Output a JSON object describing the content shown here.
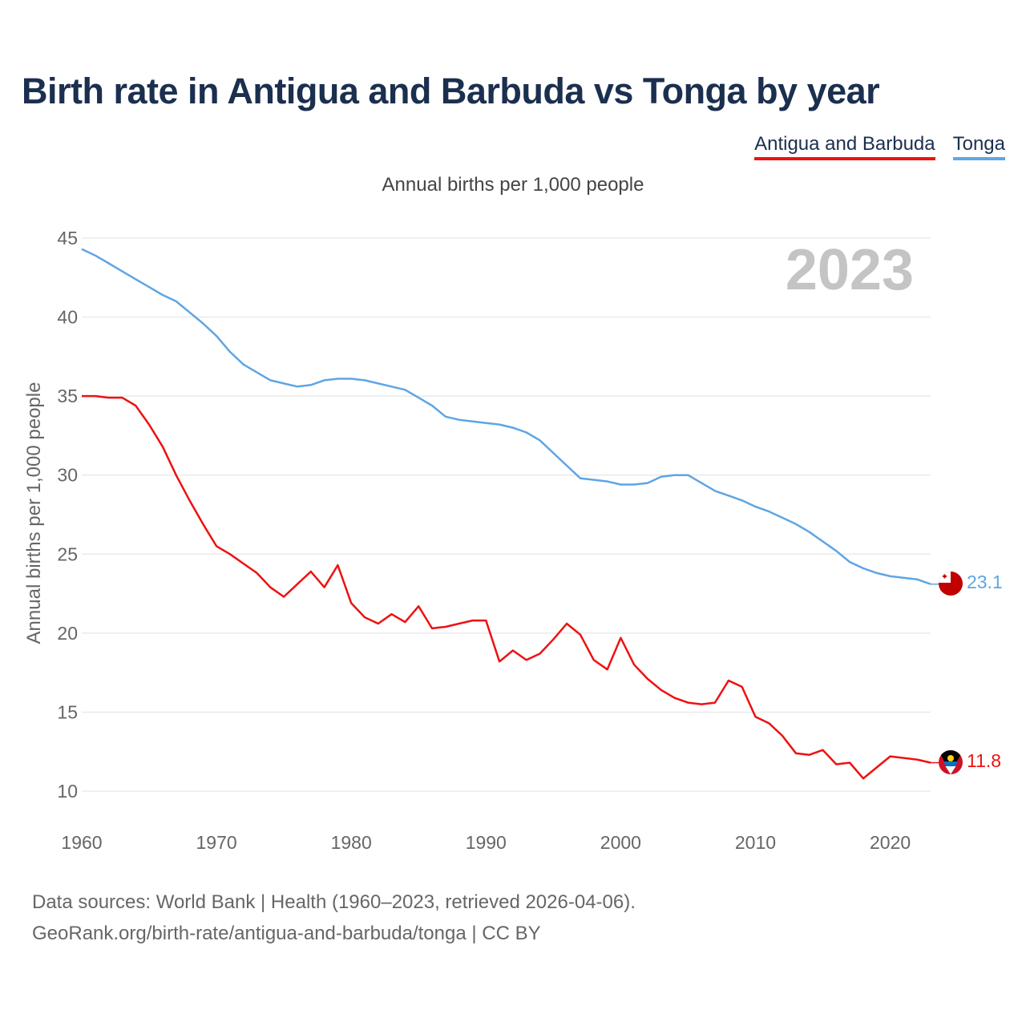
{
  "title": "Birth rate in Antigua and Barbuda vs Tonga by year",
  "subtitle": "Annual births per 1,000 people",
  "footer": {
    "line1": "Data sources: World Bank | Health (1960–2023, retrieved 2026-04-06).",
    "line2": "GeoRank.org/birth-rate/antigua-and-barbuda/tonga | CC BY"
  },
  "year_label": "2023",
  "chart_data": {
    "type": "line",
    "title": "Birth rate in Antigua and Barbuda vs Tonga by year",
    "subtitle": "Annual births per 1,000 people",
    "xlabel": "",
    "ylabel": "Annual births per 1,000 people",
    "xlim": [
      1960,
      2023
    ],
    "ylim": [
      10,
      45
    ],
    "xticks": [
      1960,
      1970,
      1980,
      1990,
      2000,
      2010,
      2020
    ],
    "yticks": [
      10,
      15,
      20,
      25,
      30,
      35,
      40,
      45
    ],
    "grid": true,
    "legend_position": "top-right",
    "x": [
      1960,
      1961,
      1962,
      1963,
      1964,
      1965,
      1966,
      1967,
      1968,
      1969,
      1970,
      1971,
      1972,
      1973,
      1974,
      1975,
      1976,
      1977,
      1978,
      1979,
      1980,
      1981,
      1982,
      1983,
      1984,
      1985,
      1986,
      1987,
      1988,
      1989,
      1990,
      1991,
      1992,
      1993,
      1994,
      1995,
      1996,
      1997,
      1998,
      1999,
      2000,
      2001,
      2002,
      2003,
      2004,
      2005,
      2006,
      2007,
      2008,
      2009,
      2010,
      2011,
      2012,
      2013,
      2014,
      2015,
      2016,
      2017,
      2018,
      2019,
      2020,
      2021,
      2022,
      2023
    ],
    "series": [
      {
        "name": "Antigua and Barbuda",
        "color": "#ee1111",
        "end_label": "11.8",
        "values": [
          35.0,
          35.0,
          34.9,
          34.9,
          34.4,
          33.2,
          31.8,
          30.0,
          28.4,
          26.9,
          25.5,
          25.0,
          24.4,
          23.8,
          22.9,
          22.3,
          23.1,
          23.9,
          22.9,
          24.3,
          21.9,
          21.0,
          20.6,
          21.2,
          20.7,
          21.7,
          20.3,
          20.4,
          20.6,
          20.8,
          20.8,
          18.2,
          18.9,
          18.3,
          18.7,
          19.6,
          20.6,
          19.9,
          18.3,
          17.7,
          19.7,
          18.0,
          17.1,
          16.4,
          15.9,
          15.6,
          15.5,
          15.6,
          17.0,
          16.6,
          14.7,
          14.3,
          13.5,
          12.4,
          12.3,
          12.6,
          11.7,
          11.8,
          10.8,
          11.5,
          12.2,
          12.1,
          12.0,
          11.8
        ]
      },
      {
        "name": "Tonga",
        "color": "#5fa5e4",
        "end_label": "23.1",
        "values": [
          44.3,
          43.9,
          43.4,
          42.9,
          42.4,
          41.9,
          41.4,
          41.0,
          40.3,
          39.6,
          38.8,
          37.8,
          37.0,
          36.5,
          36.0,
          35.8,
          35.6,
          35.7,
          36.0,
          36.1,
          36.1,
          36.0,
          35.8,
          35.6,
          35.4,
          34.9,
          34.4,
          33.7,
          33.5,
          33.4,
          33.3,
          33.2,
          33.0,
          32.7,
          32.2,
          31.4,
          30.6,
          29.8,
          29.7,
          29.6,
          29.4,
          29.4,
          29.5,
          29.9,
          30.0,
          30.0,
          29.5,
          29.0,
          28.7,
          28.4,
          28.0,
          27.7,
          27.3,
          26.9,
          26.4,
          25.8,
          25.2,
          24.5,
          24.1,
          23.8,
          23.6,
          23.5,
          23.4,
          23.1
        ]
      }
    ]
  }
}
